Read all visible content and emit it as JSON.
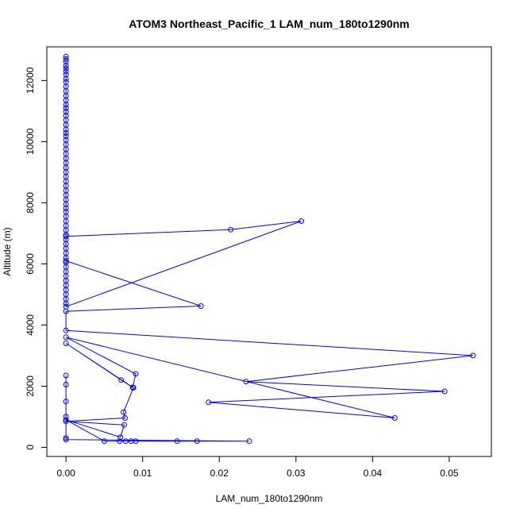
{
  "chart_data": {
    "type": "scatter",
    "title": "ATOM3 Northeast_Pacific_1 LAM_num_180to1290nm",
    "xlabel": "LAM_num_180to1290nm",
    "ylabel": "Altitude (m)",
    "xlim": [
      -0.0025,
      0.0555
    ],
    "ylim": [
      -300,
      13100
    ],
    "x_ticks": [
      0.0,
      0.01,
      0.02,
      0.03,
      0.04,
      0.05
    ],
    "x_tick_labels": [
      "0.00",
      "0.01",
      "0.02",
      "0.03",
      "0.04",
      "0.05"
    ],
    "y_ticks": [
      0,
      2000,
      4000,
      6000,
      8000,
      10000,
      12000
    ],
    "y_tick_labels": [
      "0",
      "2000",
      "4000",
      "6000",
      "8000",
      "10000",
      "12000"
    ],
    "grid": false,
    "legend": "none",
    "series": [
      {
        "color": "#0000ff",
        "style": "lines+points",
        "x": [
          0,
          0,
          0,
          0,
          0,
          0,
          0,
          0,
          0,
          0,
          0,
          0,
          0,
          0,
          0,
          0,
          0,
          0,
          0,
          0,
          0,
          0,
          0,
          0,
          0,
          0,
          0,
          0,
          0,
          0,
          0,
          0,
          0,
          0,
          0,
          0,
          0,
          0,
          0,
          0,
          0,
          0,
          0,
          0,
          0,
          0,
          0,
          0,
          0,
          0,
          0,
          0,
          0,
          0,
          0,
          0,
          0,
          0,
          0,
          0,
          0.0307,
          0.0215,
          0,
          0,
          0.0176,
          0,
          0,
          0.0531,
          0.0235,
          0.0494,
          0.0186,
          0.0429,
          0,
          0.0091,
          0.0087,
          0.0072,
          0,
          0.0088,
          0.0075,
          0.0077,
          0,
          0.0076,
          0.0071,
          0,
          0.005,
          0.0085,
          0.0091,
          0.007,
          0.0078,
          0.0145,
          0.0171,
          0.0239,
          0,
          0,
          0,
          0,
          0,
          0
        ],
        "y": [
          12780,
          12700,
          12620,
          12480,
          12400,
          12300,
          12200,
          12050,
          11950,
          11800,
          11650,
          11500,
          11350,
          11200,
          11100,
          10980,
          10850,
          10700,
          10550,
          10400,
          10280,
          10180,
          10050,
          9900,
          9750,
          9600,
          9450,
          9300,
          9150,
          9000,
          8850,
          8700,
          8550,
          8400,
          8250,
          8100,
          7950,
          7820,
          7700,
          7550,
          7400,
          7250,
          7100,
          6950,
          6800,
          6650,
          6500,
          6350,
          6200,
          6050,
          5900,
          5750,
          5600,
          5450,
          5300,
          5150,
          5000,
          4850,
          4700,
          4600,
          7400,
          7120,
          6900,
          6100,
          4620,
          4450,
          3820,
          3000,
          2150,
          1830,
          1470,
          960,
          3600,
          2400,
          1960,
          2200,
          3400,
          1950,
          1150,
          960,
          850,
          730,
          330,
          900,
          200,
          200,
          200,
          200,
          200,
          200,
          200,
          200,
          250,
          300,
          1000,
          1500,
          2050,
          2350
        ]
      }
    ]
  }
}
